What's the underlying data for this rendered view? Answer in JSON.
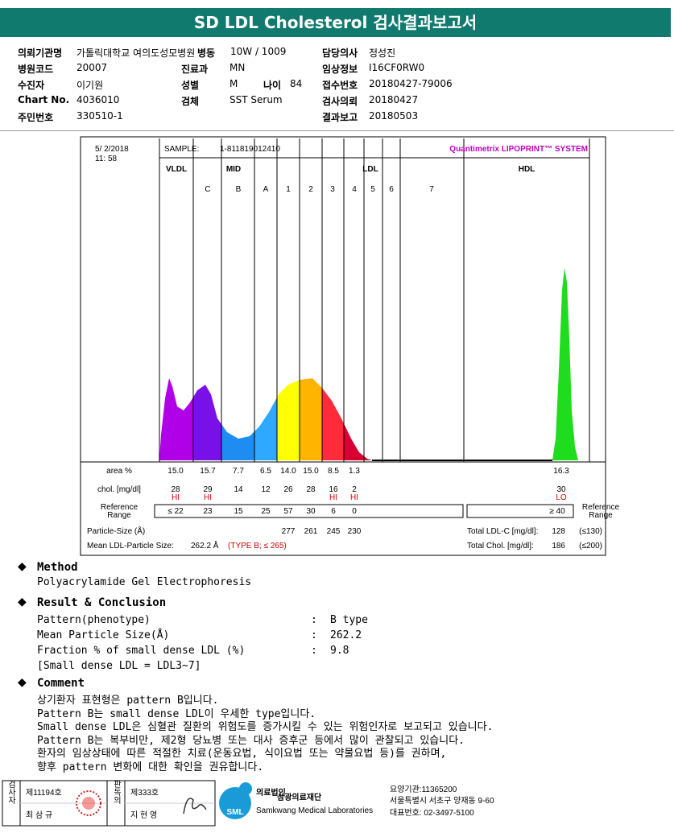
{
  "header": {
    "title": "SD LDL Cholesterol 검사결과보고서"
  },
  "info": [
    {
      "label": "의뢰기관명",
      "value": "가톨릭대학교 여의도성모병원"
    },
    {
      "label": "병동",
      "value": "10W / 1009"
    },
    {
      "label": "담당의사",
      "value": "정성진"
    },
    {
      "label": "병원코드",
      "value": "20007"
    },
    {
      "label": "진료과",
      "value": "MN"
    },
    {
      "label": "임상정보",
      "value": "I16CF0RW0"
    },
    {
      "label": "수진자",
      "value": "이기원"
    },
    {
      "label": "성별",
      "value": "M"
    },
    {
      "label": "나이",
      "value": "84"
    },
    {
      "label": "접수번호",
      "value": "20180427-79006"
    },
    {
      "label": "Chart No.",
      "value": "4036010"
    },
    {
      "label": "검체",
      "value": "SST Serum"
    },
    {
      "label": "검사의뢰",
      "value": "20180427"
    },
    {
      "label": "주민번호",
      "value": "330510-1"
    },
    {
      "label": "결과보고",
      "value": "20180503"
    }
  ],
  "lipoprint": {
    "date": "5/ 2/2018",
    "time": "11: 58",
    "sample_label": "SAMPLE:",
    "sample": "1-811819012410",
    "system": "Quantimetrix LIPOPRINT™ SYSTEM",
    "bands": [
      "VLDL",
      "MID",
      "LDL",
      "HDL"
    ],
    "subbands": [
      "C",
      "B",
      "A",
      "1",
      "2",
      "3",
      "4",
      "5",
      "6",
      "7"
    ],
    "area": {
      "label": "area %",
      "values": [
        "15.0",
        "15.7",
        "7.7",
        "6.5",
        "14.0",
        "15.0",
        "8.5",
        "1.3",
        "16.3"
      ]
    },
    "chol": {
      "label": "chol. [mg/dl]",
      "values": [
        "28",
        "29",
        "14",
        "12",
        "26",
        "28",
        "16",
        "2",
        "30"
      ]
    },
    "flags": [
      "HI",
      "HI",
      null,
      null,
      null,
      null,
      "HI",
      "HI",
      "LO"
    ],
    "reference": {
      "label": "Reference Range",
      "values": [
        "≤ 22",
        "23",
        "15",
        "25",
        "57",
        "30",
        "6",
        "0",
        "≥ 40"
      ],
      "right_label": "Reference Range"
    },
    "particle": {
      "label": "Particle-Size (Å)",
      "values": [
        "277",
        "261",
        "245",
        "230"
      ]
    },
    "totals": {
      "ldl_label": "Total LDL-C [mg/dl]:",
      "ldl": "128",
      "ldl_ref": "(≤130)",
      "chol_label": "Total Chol. [mg/dl]:",
      "chol": "186",
      "chol_ref": "(≤200)"
    },
    "mean": {
      "label": "Mean LDL-Particle Size:",
      "value": "262.2 Å",
      "type": "(TYPE B; ≤ 265)"
    }
  },
  "method": {
    "title": "Method",
    "text": "Polyacrylamide Gel Electrophoresis"
  },
  "result": {
    "title": "Result & Conclusion",
    "rows": [
      {
        "label": "Pattern(phenotype)",
        "value": "B type"
      },
      {
        "label": "Mean Particle Size(Å)",
        "value": "262.2"
      },
      {
        "label": "Fraction % of small dense LDL (%)",
        "value": "9.8"
      }
    ],
    "note": "[Small dense LDL = LDL3~7]",
    "sep": ":"
  },
  "comment": {
    "title": "Comment",
    "lines": [
      "상기환자 표현형은 pattern B입니다.",
      "Pattern B는 small dense LDL이 우세한 type입니다.",
      "Small dense LDL은 심혈관 질환의 위험도를 증가시킬 수 있는 위험인자로 보고되고 있습니다.",
      "Pattern B는 복부비만, 제2형 당뇨병 또는 대사 증후군 등에서 많이 관찰되고 있습니다.",
      "환자의 임상상태에 따른 적절한 치료(운동요법, 식이요법 또는 약물요법 등)를 권하며,",
      "향후 pattern 변화에 대한 확인을 권유합니다."
    ]
  },
  "footer": {
    "tester_label": "검사자",
    "tester_no": "제11194호",
    "tester_name": "최 삼 규",
    "reader_label": "판독의",
    "reader_no": "제333호",
    "reader_name": "지 현 영",
    "org_type": "의료법인",
    "org": "삼광의료재단",
    "org_en": "Samkwang Medical Laboratories",
    "logo": "SML",
    "code": "요양기관:11365200",
    "address": "서울특별시 서초구 양재동 9-60",
    "phone": "대표번호: 02-3497-5100"
  }
}
